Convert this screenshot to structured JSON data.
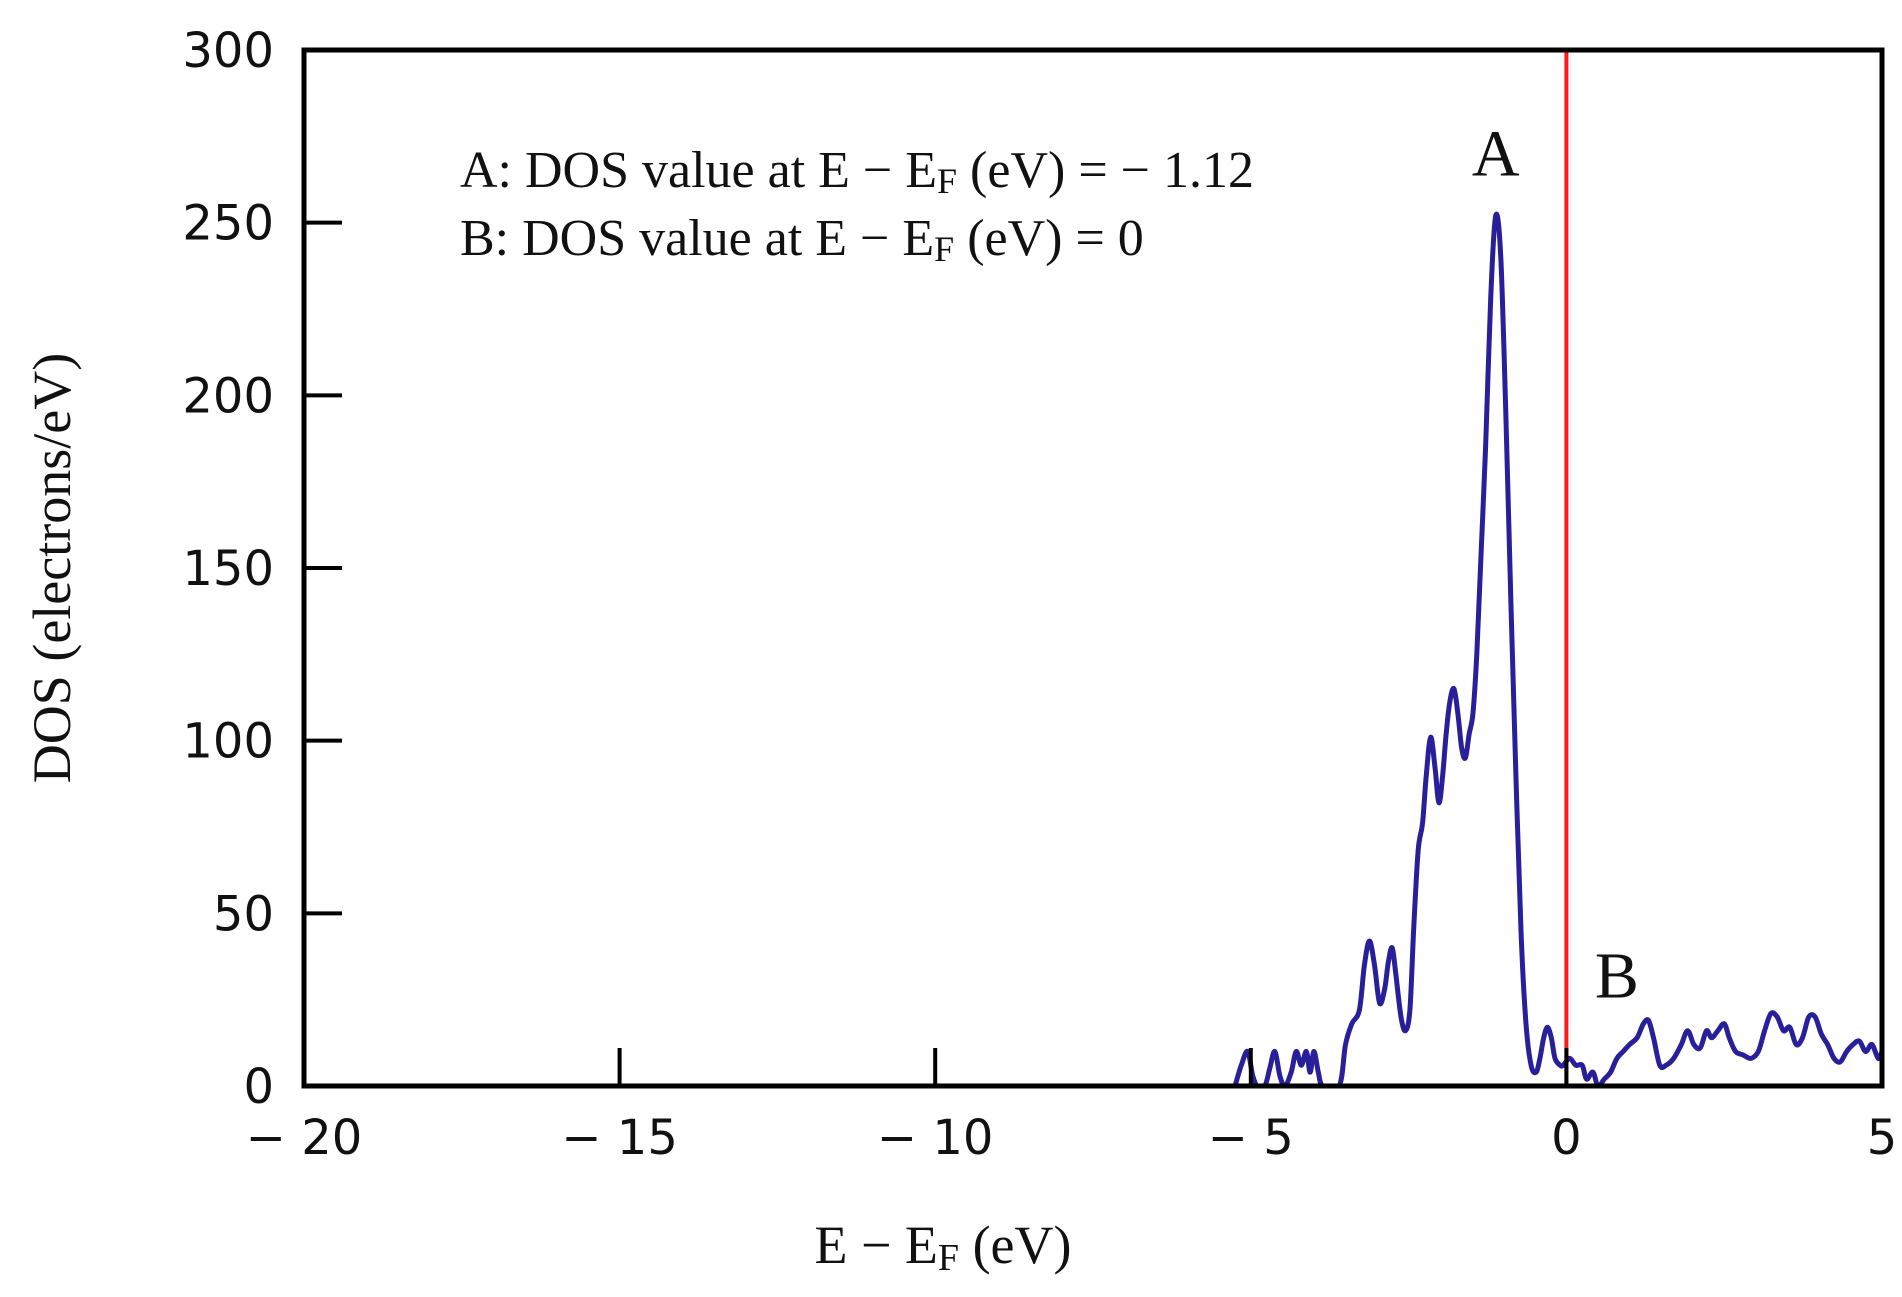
{
  "chart_data": {
    "type": "line",
    "xlabel": {
      "main": "E − E",
      "sub": "F",
      "unit": " (eV)"
    },
    "ylabel": "DOS (electrons/eV)",
    "xlim": [
      -20,
      5
    ],
    "ylim": [
      0,
      300
    ],
    "x_ticks": [
      -20,
      -15,
      -10,
      -5,
      0,
      5
    ],
    "x_tick_labels": [
      "− 20",
      "− 15",
      "− 10",
      "− 5",
      "0",
      "5"
    ],
    "y_ticks": [
      0,
      50,
      100,
      150,
      200,
      250,
      300
    ],
    "y_tick_labels": [
      "0",
      "50",
      "100",
      "150",
      "200",
      "250",
      "300"
    ],
    "grid": false,
    "series": [
      {
        "name": "DOS",
        "color": "#2a1f9a",
        "points": [
          [
            -5.25,
            0
          ],
          [
            -5.15,
            6
          ],
          [
            -5.05,
            10
          ],
          [
            -4.97,
            3
          ],
          [
            -4.9,
            0
          ],
          [
            -4.78,
            0
          ],
          [
            -4.7,
            5
          ],
          [
            -4.62,
            10
          ],
          [
            -4.54,
            3
          ],
          [
            -4.46,
            0
          ],
          [
            -4.36,
            4
          ],
          [
            -4.28,
            10
          ],
          [
            -4.2,
            6
          ],
          [
            -4.12,
            10
          ],
          [
            -4.06,
            4
          ],
          [
            -4.0,
            10
          ],
          [
            -3.93,
            4
          ],
          [
            -3.86,
            0
          ],
          [
            -3.6,
            0
          ],
          [
            -3.5,
            12
          ],
          [
            -3.4,
            18
          ],
          [
            -3.28,
            22
          ],
          [
            -3.2,
            35
          ],
          [
            -3.12,
            42
          ],
          [
            -3.04,
            35
          ],
          [
            -2.96,
            24
          ],
          [
            -2.88,
            28
          ],
          [
            -2.82,
            36
          ],
          [
            -2.76,
            40
          ],
          [
            -2.7,
            32
          ],
          [
            -2.62,
            20
          ],
          [
            -2.55,
            16
          ],
          [
            -2.48,
            22
          ],
          [
            -2.42,
            45
          ],
          [
            -2.35,
            68
          ],
          [
            -2.28,
            76
          ],
          [
            -2.22,
            90
          ],
          [
            -2.15,
            101
          ],
          [
            -2.08,
            92
          ],
          [
            -2.02,
            82
          ],
          [
            -1.96,
            90
          ],
          [
            -1.9,
            103
          ],
          [
            -1.84,
            112
          ],
          [
            -1.78,
            115
          ],
          [
            -1.72,
            108
          ],
          [
            -1.66,
            98
          ],
          [
            -1.6,
            95
          ],
          [
            -1.54,
            102
          ],
          [
            -1.48,
            108
          ],
          [
            -1.42,
            125
          ],
          [
            -1.35,
            155
          ],
          [
            -1.28,
            185
          ],
          [
            -1.2,
            228
          ],
          [
            -1.12,
            252
          ],
          [
            -1.04,
            240
          ],
          [
            -0.96,
            195
          ],
          [
            -0.88,
            140
          ],
          [
            -0.8,
            90
          ],
          [
            -0.72,
            45
          ],
          [
            -0.64,
            18
          ],
          [
            -0.56,
            6
          ],
          [
            -0.48,
            4
          ],
          [
            -0.42,
            8
          ],
          [
            -0.36,
            14
          ],
          [
            -0.3,
            17
          ],
          [
            -0.24,
            14
          ],
          [
            -0.18,
            8
          ],
          [
            -0.1,
            6
          ],
          [
            -0.05,
            6
          ],
          [
            0.05,
            8
          ],
          [
            0.15,
            6
          ],
          [
            0.25,
            6
          ],
          [
            0.32,
            2
          ],
          [
            0.42,
            4
          ],
          [
            0.5,
            0
          ],
          [
            0.6,
            2
          ],
          [
            0.7,
            4
          ],
          [
            0.8,
            8
          ],
          [
            0.9,
            10
          ],
          [
            1.0,
            12
          ],
          [
            1.12,
            14
          ],
          [
            1.22,
            18
          ],
          [
            1.3,
            19
          ],
          [
            1.38,
            14
          ],
          [
            1.48,
            6
          ],
          [
            1.58,
            6
          ],
          [
            1.7,
            8
          ],
          [
            1.82,
            12
          ],
          [
            1.92,
            16
          ],
          [
            2.02,
            12
          ],
          [
            2.12,
            11
          ],
          [
            2.22,
            16
          ],
          [
            2.3,
            14
          ],
          [
            2.4,
            16
          ],
          [
            2.5,
            18
          ],
          [
            2.58,
            14
          ],
          [
            2.68,
            10
          ],
          [
            2.8,
            9
          ],
          [
            2.92,
            8
          ],
          [
            3.04,
            10
          ],
          [
            3.14,
            16
          ],
          [
            3.24,
            21
          ],
          [
            3.34,
            20
          ],
          [
            3.44,
            16
          ],
          [
            3.54,
            17
          ],
          [
            3.64,
            12
          ],
          [
            3.74,
            14
          ],
          [
            3.84,
            20
          ],
          [
            3.94,
            20
          ],
          [
            4.04,
            15
          ],
          [
            4.14,
            12
          ],
          [
            4.24,
            8
          ],
          [
            4.34,
            7
          ],
          [
            4.44,
            10
          ],
          [
            4.54,
            12
          ],
          [
            4.64,
            13
          ],
          [
            4.74,
            10
          ],
          [
            4.84,
            12
          ],
          [
            4.94,
            8
          ],
          [
            5.0,
            10
          ]
        ]
      }
    ],
    "reference_line": {
      "name": "fermi-level",
      "x": 0,
      "color": "#ff1a1a"
    },
    "annotations": [
      {
        "id": "A",
        "text": "A",
        "x": -1.12,
        "y": 270
      },
      {
        "id": "B",
        "text": "B",
        "x": 0.8,
        "y": 32
      }
    ],
    "legend_text": {
      "line1": {
        "pre": "A: DOS value at E − E",
        "sub": "F",
        "post": " (eV) = − 1.12"
      },
      "line2": {
        "pre": "B: DOS value at E − E",
        "sub": "F",
        "post": " (eV) = 0"
      }
    },
    "axis_color": "#000000"
  }
}
